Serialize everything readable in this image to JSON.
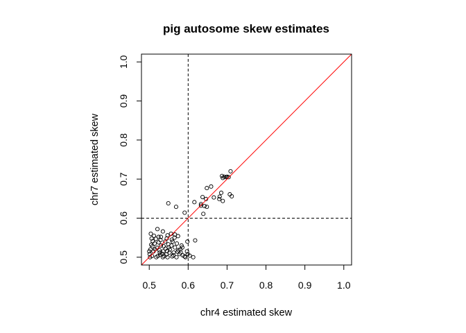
{
  "chart_data": {
    "type": "scatter",
    "title": "pig autosome skew estimates",
    "xlabel": "chr4 estimated skew",
    "ylabel": "chr7 estimated skew",
    "xlim": [
      0.48,
      1.02
    ],
    "ylim": [
      0.48,
      1.02
    ],
    "xticks": [
      "0.5",
      "0.6",
      "0.7",
      "0.8",
      "0.9",
      "1.0"
    ],
    "yticks": [
      "0.5",
      "0.6",
      "0.7",
      "0.8",
      "0.9",
      "1.0"
    ],
    "reference_lines": {
      "diagonal": {
        "from": [
          0.48,
          0.48
        ],
        "to": [
          1.02,
          1.02
        ],
        "color": "#ff0000"
      },
      "vertical_dashed_x": 0.6,
      "horizontal_dashed_y": 0.6
    },
    "grid": false,
    "point_style": "open-circle",
    "points": [
      [
        0.549,
        0.638
      ],
      [
        0.569,
        0.629
      ],
      [
        0.591,
        0.614
      ],
      [
        0.616,
        0.641
      ],
      [
        0.633,
        0.636
      ],
      [
        0.633,
        0.632
      ],
      [
        0.637,
        0.654
      ],
      [
        0.642,
        0.631
      ],
      [
        0.639,
        0.611
      ],
      [
        0.648,
        0.629
      ],
      [
        0.646,
        0.649
      ],
      [
        0.648,
        0.677
      ],
      [
        0.659,
        0.681
      ],
      [
        0.666,
        0.653
      ],
      [
        0.681,
        0.655
      ],
      [
        0.68,
        0.649
      ],
      [
        0.685,
        0.665
      ],
      [
        0.689,
        0.644
      ],
      [
        0.687,
        0.708
      ],
      [
        0.689,
        0.703
      ],
      [
        0.693,
        0.706
      ],
      [
        0.698,
        0.705
      ],
      [
        0.7,
        0.706
      ],
      [
        0.704,
        0.705
      ],
      [
        0.707,
        0.661
      ],
      [
        0.712,
        0.656
      ],
      [
        0.709,
        0.72
      ],
      [
        0.618,
        0.543
      ],
      [
        0.598,
        0.54
      ],
      [
        0.574,
        0.554
      ],
      [
        0.566,
        0.558
      ],
      [
        0.556,
        0.56
      ],
      [
        0.535,
        0.566
      ],
      [
        0.521,
        0.572
      ],
      [
        0.504,
        0.56
      ],
      [
        0.512,
        0.555
      ],
      [
        0.53,
        0.552
      ],
      [
        0.545,
        0.548
      ],
      [
        0.558,
        0.545
      ],
      [
        0.571,
        0.535
      ],
      [
        0.566,
        0.525
      ],
      [
        0.575,
        0.518
      ],
      [
        0.581,
        0.512
      ],
      [
        0.586,
        0.505
      ],
      [
        0.593,
        0.5
      ],
      [
        0.613,
        0.5
      ],
      [
        0.604,
        0.504
      ],
      [
        0.597,
        0.515
      ],
      [
        0.585,
        0.525
      ],
      [
        0.56,
        0.54
      ],
      [
        0.549,
        0.533
      ],
      [
        0.542,
        0.522
      ],
      [
        0.536,
        0.515
      ],
      [
        0.528,
        0.506
      ],
      [
        0.518,
        0.5
      ],
      [
        0.502,
        0.5
      ],
      [
        0.501,
        0.508
      ],
      [
        0.503,
        0.52
      ],
      [
        0.505,
        0.532
      ],
      [
        0.509,
        0.541
      ],
      [
        0.517,
        0.547
      ],
      [
        0.524,
        0.538
      ],
      [
        0.53,
        0.53
      ],
      [
        0.552,
        0.512
      ],
      [
        0.562,
        0.505
      ],
      [
        0.57,
        0.5
      ],
      [
        0.547,
        0.5
      ],
      [
        0.538,
        0.503
      ],
      [
        0.511,
        0.515
      ],
      [
        0.508,
        0.528
      ],
      [
        0.52,
        0.524
      ],
      [
        0.526,
        0.518
      ],
      [
        0.533,
        0.509
      ],
      [
        0.544,
        0.507
      ],
      [
        0.553,
        0.52
      ],
      [
        0.541,
        0.54
      ],
      [
        0.529,
        0.544
      ],
      [
        0.514,
        0.535
      ],
      [
        0.557,
        0.53
      ],
      [
        0.578,
        0.508
      ],
      [
        0.591,
        0.502
      ],
      [
        0.583,
        0.53
      ],
      [
        0.565,
        0.55
      ],
      [
        0.547,
        0.556
      ],
      [
        0.524,
        0.552
      ],
      [
        0.506,
        0.548
      ],
      [
        0.5,
        0.515
      ],
      [
        0.522,
        0.503
      ],
      [
        0.535,
        0.5
      ],
      [
        0.559,
        0.502
      ],
      [
        0.573,
        0.514
      ],
      [
        0.55,
        0.525
      ],
      [
        0.537,
        0.528
      ],
      [
        0.515,
        0.52
      ],
      [
        0.507,
        0.503
      ],
      [
        0.527,
        0.512
      ],
      [
        0.546,
        0.516
      ],
      [
        0.563,
        0.512
      ],
      [
        0.58,
        0.52
      ],
      [
        0.599,
        0.508
      ]
    ]
  }
}
